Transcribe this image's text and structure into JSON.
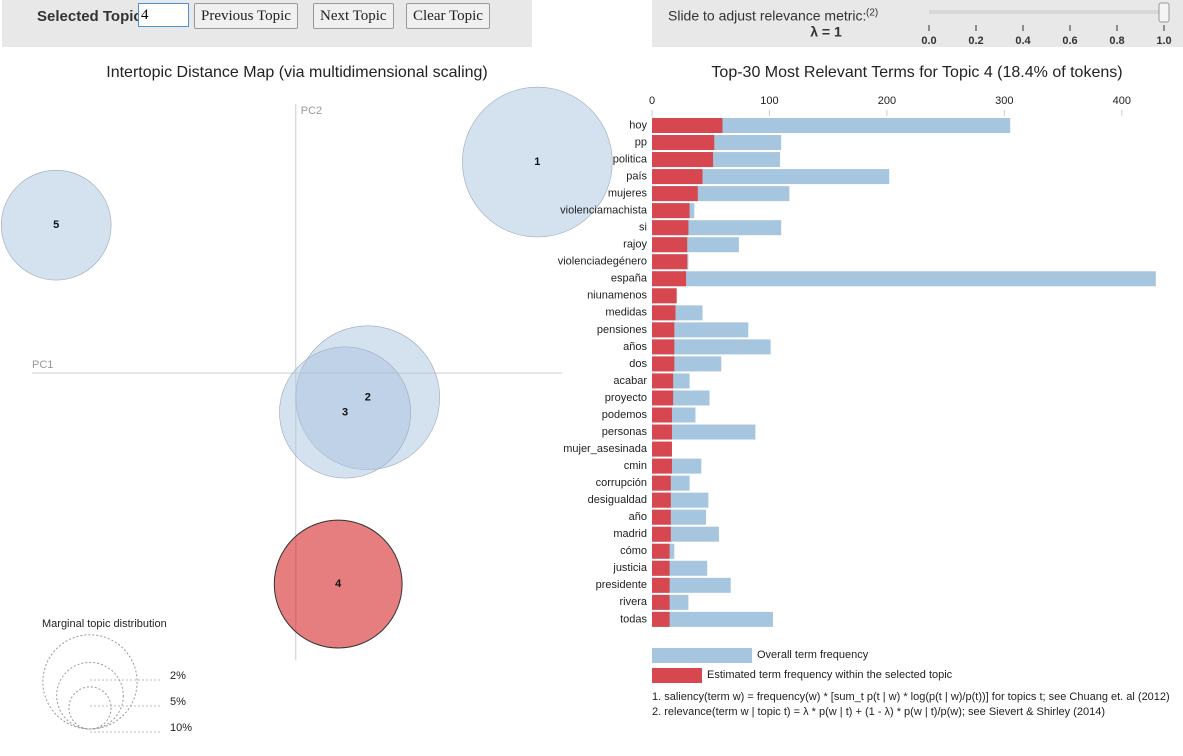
{
  "controls": {
    "selected_topic_label": "Selected Topic:",
    "selected_topic_value": "4",
    "buttons": [
      "Previous Topic",
      "Next Topic",
      "Clear Topic"
    ],
    "slider": {
      "label": "Slide to adjust relevance metric:",
      "note": "(2)",
      "lambda_label": "λ = 1",
      "value": 1,
      "range": [
        0,
        1
      ],
      "ticks": [
        {
          "value": 0,
          "label": "0.0"
        },
        {
          "value": 0.2,
          "label": "0.2"
        },
        {
          "value": 0.4,
          "label": "0.4"
        },
        {
          "value": 0.6,
          "label": "0.6"
        },
        {
          "value": 0.8,
          "label": "0.8"
        },
        {
          "value": 1,
          "label": "1.0"
        }
      ]
    }
  },
  "chart_data": [
    {
      "type": "bubble",
      "title": "Intertopic Distance Map (via multidimensional scaling)",
      "xlabel": "PC1",
      "ylabel": "PC2",
      "xlim": [
        -0.3,
        0.27
      ],
      "ylim": [
        -0.291,
        0.282
      ],
      "labels": [
        "1",
        "2",
        "3",
        "4",
        "5"
      ],
      "x": [
        0.245,
        0.073,
        0.05,
        0.043,
        -0.243
      ],
      "y": [
        0.214,
        -0.025,
        -0.04,
        -0.214,
        0.15
      ],
      "sizes": [
        25.3,
        23.3,
        19.4,
        18.4,
        13.6
      ],
      "colors": [
        "#a9c4e0",
        "#a9c4e0",
        "#a9c4e0",
        "#d62728",
        "#a9c4e0"
      ],
      "size_legend": {
        "title": "Marginal topic distribution",
        "sizes": [
          {
            "value": 2,
            "label": "2%"
          },
          {
            "value": 5,
            "label": "5%"
          },
          {
            "value": 10,
            "label": "10%"
          }
        ]
      }
    },
    {
      "type": "hbar",
      "title": "Top-30 Most Relevant Terms for Topic 4 (18.4% of tokens)",
      "categories": [
        "hoy",
        "pp",
        "politica",
        "país",
        "mujeres",
        "violenciamachista",
        "si",
        "rajoy",
        "violenciadegénero",
        "españa",
        "niunamenos",
        "medidas",
        "pensiones",
        "años",
        "dos",
        "acabar",
        "proyecto",
        "podemos",
        "personas",
        "mujer_asesinada",
        "cmin",
        "corrupción",
        "desigualdad",
        "año",
        "madrid",
        "cómo",
        "justicia",
        "presidente",
        "rivera",
        "todas"
      ],
      "series": [
        {
          "name": "Overall term frequency",
          "color": "#a6c6e0",
          "values": [
            305,
            110,
            109,
            202,
            117,
            36,
            110,
            74,
            31,
            429,
            21,
            43,
            82,
            101,
            59,
            32,
            49,
            37,
            88,
            17,
            42,
            32,
            48,
            46,
            57,
            19,
            47,
            67,
            31,
            103
          ]
        },
        {
          "name": "Estimated term frequency within the selected topic",
          "color": "#d6474f",
          "values": [
            60,
            53,
            52,
            43,
            39,
            32,
            31,
            30,
            30,
            29,
            21,
            20,
            19,
            19,
            19,
            18,
            18,
            17,
            17,
            17,
            17,
            16,
            16,
            16,
            16,
            15,
            15,
            15,
            15,
            15
          ]
        }
      ],
      "xlim": [
        0,
        430
      ],
      "xticks": [
        0,
        100,
        200,
        300,
        400
      ],
      "notes": [
        "1. saliency(term w) = frequency(w) * [sum_t p(t | w) * log(p(t | w)/p(t))] for topics t; see Chuang et. al (2012)",
        "2. relevance(term w | topic t) = λ * p(w | t) + (1 - λ) * p(w | t)/p(w); see Sievert & Shirley (2014)"
      ]
    }
  ]
}
